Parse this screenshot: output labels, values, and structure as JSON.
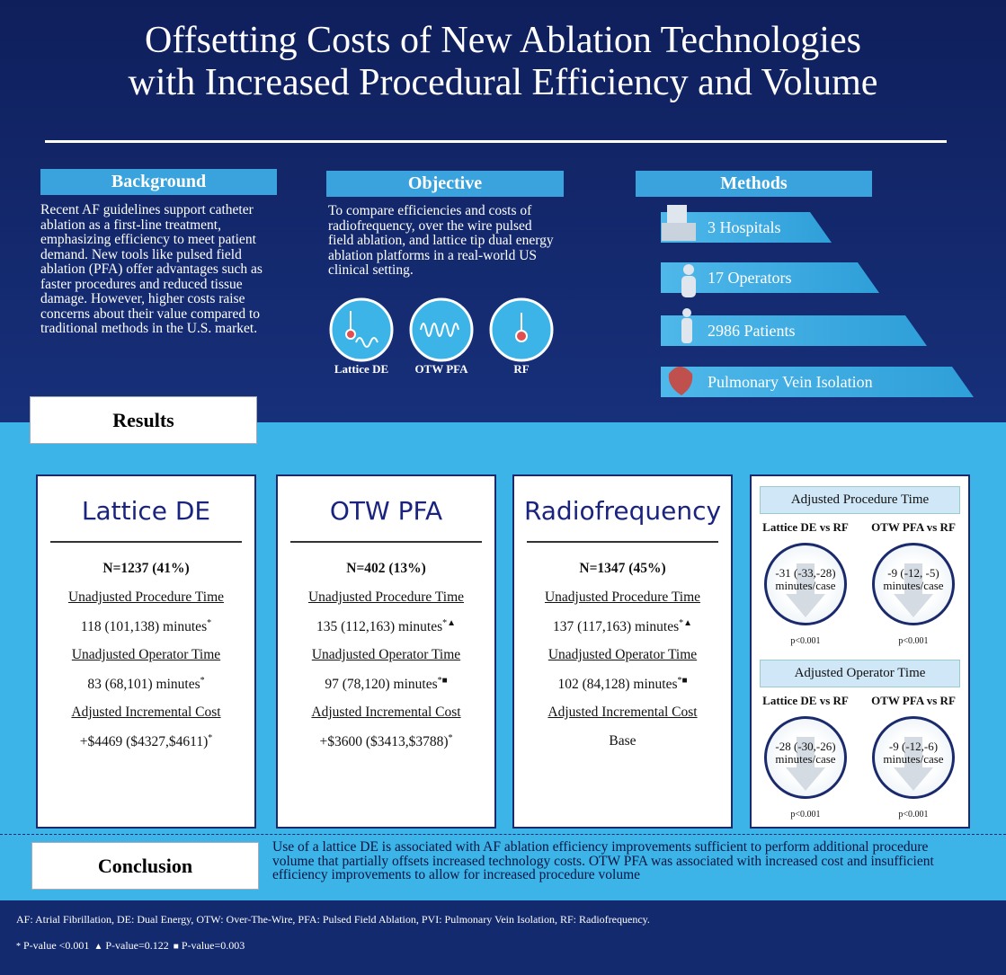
{
  "header": {
    "title_lines": [
      "Offsetting Costs of New Ablation Technologies",
      "with Increased Procedural Efficiency and Volume"
    ]
  },
  "background": {
    "heading": "Background",
    "text": "Recent AF guidelines support catheter ablation as a first-line treatment, emphasizing efficiency to meet patient demand. New tools like pulsed field ablation (PFA) offer advantages such as faster procedures and reduced tissue damage. However, higher costs raise concerns about their value compared to traditional methods in the U.S. market."
  },
  "objective": {
    "heading": "Objective",
    "text": "To compare efficiencies and costs of radiofrequency, over the wire pulsed field ablation, and lattice tip dual energy ablation platforms in a real-world US clinical setting.",
    "icons": [
      "Lattice DE",
      "OTW PFA",
      "RF"
    ]
  },
  "methods": {
    "heading": "Methods",
    "items": [
      "3 Hospitals",
      "17 Operators",
      "2986 Patients",
      "Pulmonary Vein Isolation"
    ]
  },
  "results": {
    "heading": "Results",
    "cards": [
      {
        "title": "Lattice DE",
        "n": "N=1237 (41%)",
        "rows": [
          {
            "label": "Unadjusted Procedure Time",
            "value": "118 (101,138) minutes",
            "mark": "*"
          },
          {
            "label": "Unadjusted Operator Time",
            "value": "83 (68,101) minutes",
            "mark": "*"
          },
          {
            "label": "Adjusted  Incremental Cost",
            "value": "+$4469 ($4327,$4611)",
            "mark": "*"
          }
        ]
      },
      {
        "title": "OTW PFA",
        "n": "N=402 (13%)",
        "rows": [
          {
            "label": "Unadjusted Procedure Time",
            "value": "135 (112,163) minutes",
            "mark": "*▲"
          },
          {
            "label": "Unadjusted Operator Time",
            "value": "97 (78,120) minutes",
            "mark": "*■"
          },
          {
            "label": "Adjusted Incremental Cost",
            "value": "+$3600 ($3413,$3788)",
            "mark": "*"
          }
        ]
      },
      {
        "title": "Radiofrequency",
        "n": "N=1347 (45%)",
        "rows": [
          {
            "label": "Unadjusted Procedure Time",
            "value": "137 (117,163) minutes",
            "mark": "*▲"
          },
          {
            "label": "Unadjusted Operator Time",
            "value": "102 (84,128) minutes",
            "mark": "*■"
          },
          {
            "label": "Adjusted Incremental Cost",
            "value": "Base"
          }
        ]
      }
    ],
    "adjusted": [
      {
        "title": "Adjusted Procedure Time",
        "comparisons": [
          {
            "label": "Lattice DE vs RF",
            "value": "-31 (-33,-28)",
            "unit": "minutes/case",
            "p": "p<0.001"
          },
          {
            "label": "OTW PFA vs RF",
            "value": "-9 (-12, -5)",
            "unit": "minutes/case",
            "p": "p<0.001"
          }
        ]
      },
      {
        "title": "Adjusted Operator Time",
        "comparisons": [
          {
            "label": "Lattice DE vs RF",
            "value": "-28 (-30,-26)",
            "unit": "minutes/case",
            "p": "p<0.001"
          },
          {
            "label": "OTW PFA vs RF",
            "value": "-9 (-12,-6)",
            "unit": "minutes/case",
            "p": "p<0.001"
          }
        ]
      }
    ]
  },
  "conclusion": {
    "heading": "Conclusion",
    "text": "Use of a lattice DE is associated with AF ablation efficiency improvements sufficient to perform additional procedure volume that partially offsets increased technology costs. OTW PFA was associated with increased cost and insufficient efficiency improvements to allow for increased procedure volume"
  },
  "footer": {
    "abbreviations": "AF: Atrial Fibrillation, DE: Dual Energy, OTW: Over-The-Wire, PFA: Pulsed Field Ablation, PVI: Pulmonary Vein Isolation, RF: Radiofrequency.",
    "pvalues": [
      {
        "symbol": "*",
        "text": "P-value <0.001"
      },
      {
        "symbol": "▲",
        "text": "P-value=0.122"
      },
      {
        "symbol": "■",
        "text": "P-value=0.003"
      }
    ]
  }
}
